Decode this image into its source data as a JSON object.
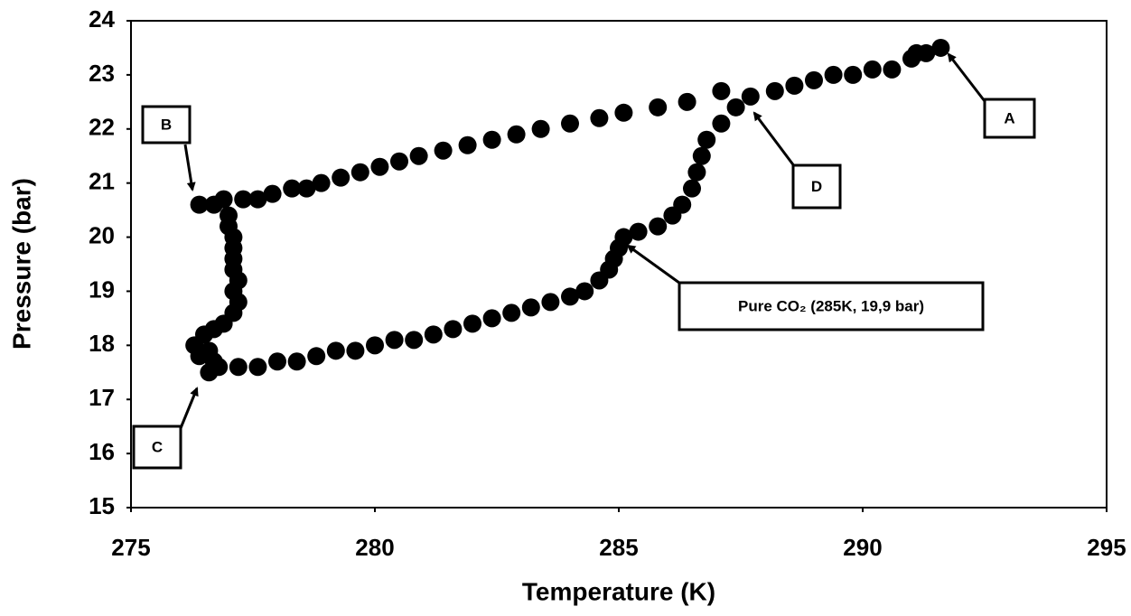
{
  "chart_data": {
    "type": "scatter",
    "x_label": "Temperature (K)",
    "y_label": "Pressure (bar)",
    "xlim": [
      275,
      295
    ],
    "ylim": [
      15,
      24
    ],
    "xticks": [
      275,
      280,
      285,
      290,
      295
    ],
    "yticks": [
      15,
      16,
      17,
      18,
      19,
      20,
      21,
      22,
      23,
      24
    ],
    "color": "#000000",
    "x": [
      291.6,
      291.1,
      287.1,
      286.4,
      285.8,
      285.1,
      284.6,
      284.0,
      283.4,
      282.9,
      282.4,
      281.9,
      281.4,
      280.9,
      280.5,
      280.1,
      279.7,
      279.3,
      278.9,
      278.6,
      278.3,
      277.9,
      277.6,
      277.3,
      276.9,
      276.7,
      276.4,
      277.0,
      277.0,
      277.1,
      277.1,
      277.1,
      277.1,
      277.2,
      277.1,
      277.2,
      277.1,
      276.9,
      276.7,
      276.5,
      276.3,
      276.4,
      276.6,
      276.7,
      276.6,
      276.8,
      277.2,
      277.6,
      278.0,
      278.4,
      278.8,
      279.2,
      279.6,
      280.0,
      280.4,
      280.8,
      281.2,
      281.6,
      282.0,
      282.4,
      282.8,
      283.2,
      283.6,
      284.0,
      284.3,
      284.6,
      284.8,
      284.9,
      285.0,
      285.1,
      285.4,
      285.8,
      286.1,
      286.3,
      286.5,
      286.6,
      286.7,
      286.8,
      287.1,
      287.4,
      287.7,
      288.2,
      288.6,
      289.0,
      289.4,
      289.8,
      290.2,
      290.6,
      291.0,
      291.3
    ],
    "values": [
      23.5,
      23.4,
      22.7,
      22.5,
      22.4,
      22.3,
      22.2,
      22.1,
      22.0,
      21.9,
      21.8,
      21.7,
      21.6,
      21.5,
      21.4,
      21.3,
      21.2,
      21.1,
      21.0,
      20.9,
      20.9,
      20.8,
      20.7,
      20.7,
      20.7,
      20.6,
      20.6,
      20.4,
      20.2,
      20.0,
      19.8,
      19.6,
      19.4,
      19.2,
      19.0,
      18.8,
      18.6,
      18.4,
      18.3,
      18.2,
      18.0,
      17.8,
      17.9,
      17.7,
      17.5,
      17.6,
      17.6,
      17.6,
      17.7,
      17.7,
      17.8,
      17.9,
      17.9,
      18.0,
      18.1,
      18.1,
      18.2,
      18.3,
      18.4,
      18.5,
      18.6,
      18.7,
      18.8,
      18.9,
      19.0,
      19.2,
      19.4,
      19.6,
      19.8,
      20.0,
      20.1,
      20.2,
      20.4,
      20.6,
      20.9,
      21.2,
      21.5,
      21.8,
      22.1,
      22.4,
      22.6,
      22.7,
      22.8,
      22.9,
      23.0,
      23.0,
      23.1,
      23.1,
      23.3,
      23.4
    ],
    "annotations": [
      "A",
      "B",
      "C",
      "D",
      "Pure CO₂ (285K, 19,9 bar)"
    ]
  }
}
